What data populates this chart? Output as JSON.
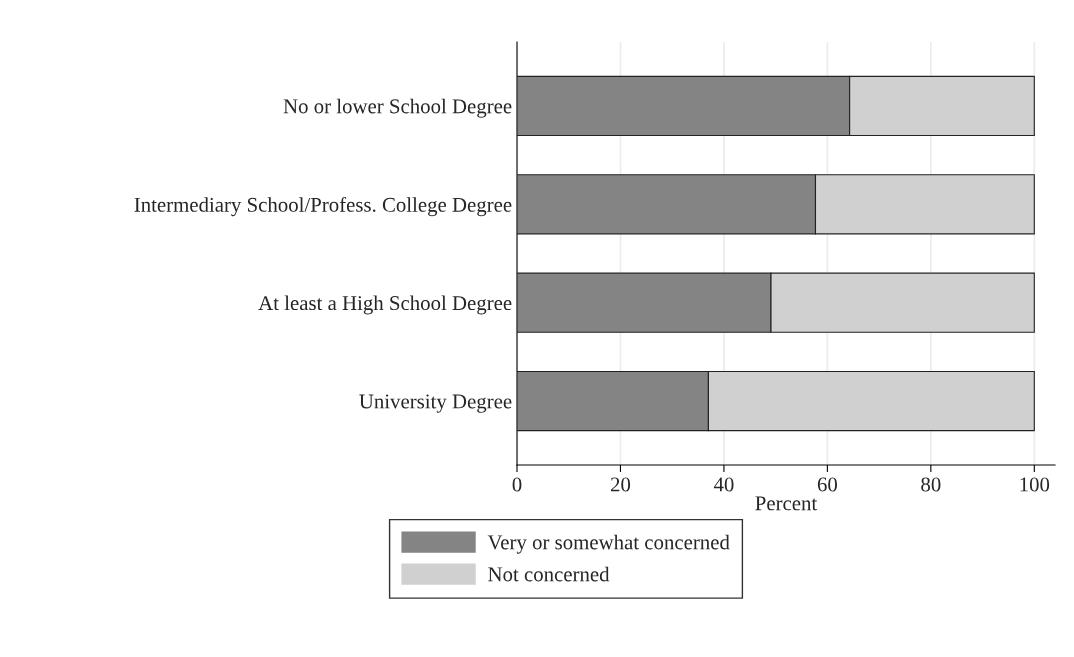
{
  "chart_data": {
    "type": "bar",
    "orientation": "horizontal",
    "stacked": true,
    "xlabel": "Percent",
    "categories": [
      "No or lower School Degree",
      "Intermediary School/Profess. College Degree",
      "At least a High School Degree",
      "University Degree"
    ],
    "series": [
      {
        "name": "Very or somewhat concerned",
        "color": "#848484",
        "values": [
          64.3,
          57.7,
          49.1,
          37.0
        ]
      },
      {
        "name": "Not concerned",
        "color": "#d0d0d0",
        "values": [
          35.7,
          42.3,
          50.9,
          63.0
        ]
      }
    ],
    "xlim": [
      0,
      104
    ],
    "xticks": [
      0,
      20,
      40,
      60,
      80,
      100
    ],
    "grid": "x",
    "legend": "bottom"
  }
}
